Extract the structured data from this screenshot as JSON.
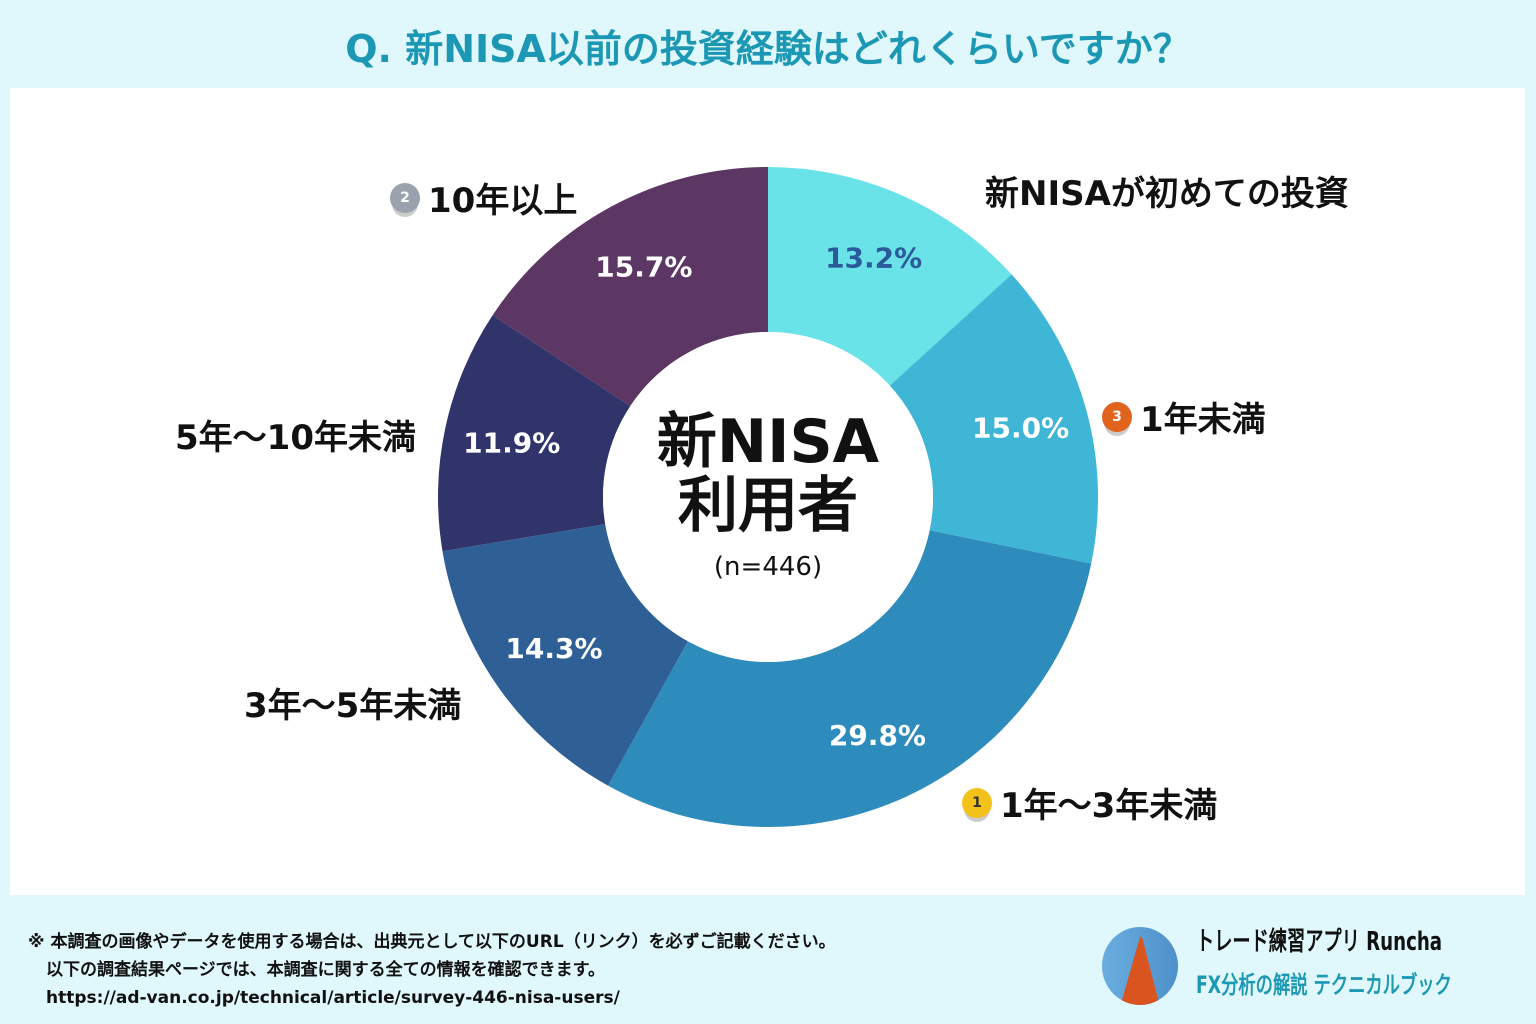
{
  "title": "Q. 新NISA以前の投資経験はどれくらいですか？",
  "chart_data": {
    "type": "pie",
    "donut": true,
    "center_label": "新NISA\n利用者",
    "center_line1": "新NISA",
    "center_line2": "利用者",
    "center_n": "(n=446)",
    "categories": [
      "新NISAが初めての投資",
      "1年未満",
      "1年〜3年未満",
      "3年〜5年未満",
      "5年〜10年未満",
      "10年以上"
    ],
    "values": [
      13.2,
      15.0,
      29.8,
      14.3,
      11.9,
      15.7
    ],
    "labels": [
      "13.2%",
      "15.0%",
      "29.8%",
      "14.3%",
      "11.9%",
      "15.7%"
    ],
    "colors": [
      "#6ae3e8",
      "#40b6d6",
      "#2e8cbc",
      "#2e6096",
      "#30346a",
      "#5d3763"
    ],
    "label_colors": [
      "#2a5a9a",
      "#ffffff",
      "#ffffff",
      "#ffffff",
      "#ffffff",
      "#ffffff"
    ],
    "ranks": {
      "1年〜3年未満": "1",
      "10年以上": "2",
      "1年未満": "3"
    },
    "medal_colors": {
      "1": "#f2c21b",
      "2": "#9aa3ad",
      "3": "#e0641e"
    }
  },
  "footer": {
    "line1": "※ 本調査の画像やデータを使用する場合は、出典元として以下のURL（リンク）を必ずご記載ください。",
    "line2": "以下の調査結果ページでは、本調査に関する全ての情報を確認できます。",
    "url": "https://ad-van.co.jp/technical/article/survey-446-nisa-users/"
  },
  "brand": {
    "line1": "トレード練習アプリ Runcha",
    "line2": "FX分析の解説 テクニカルブック"
  }
}
